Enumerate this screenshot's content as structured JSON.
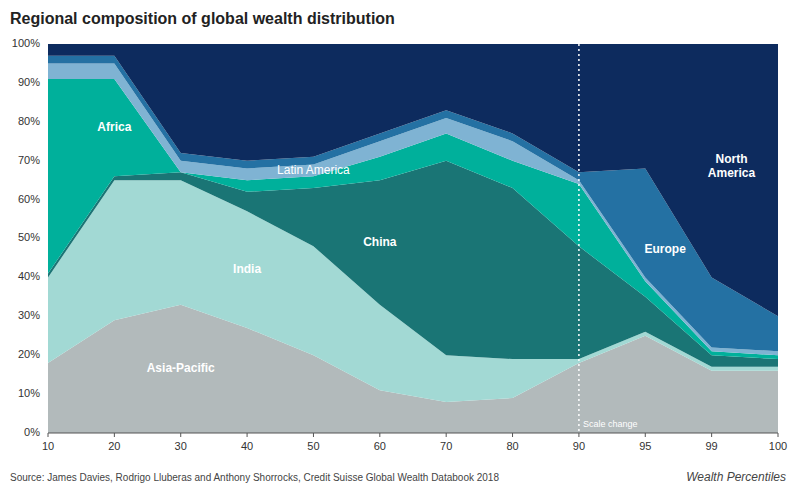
{
  "chart_data": {
    "type": "area",
    "stacked": true,
    "title": "Regional composition of global wealth distribution",
    "xlabel": "Wealth Percentiles",
    "source": "Source: James Davies, Rodrigo Lluberas and Anthony Shorrocks, Credit Suisse Global Wealth Databook 2018",
    "categories": [
      10,
      20,
      30,
      40,
      50,
      60,
      70,
      80,
      90,
      95,
      99,
      100
    ],
    "series": [
      {
        "name": "Asia-Pacific",
        "color": "#b2babb",
        "values": [
          18,
          29,
          33,
          27,
          20,
          11,
          8,
          9,
          18,
          25,
          16,
          16
        ]
      },
      {
        "name": "India",
        "color": "#a2d9d4",
        "values": [
          22,
          36,
          32,
          30,
          28,
          22,
          12,
          10,
          1,
          1,
          1,
          1
        ]
      },
      {
        "name": "China",
        "color": "#1a7575",
        "values": [
          1,
          1,
          2,
          5,
          15,
          32,
          50,
          44,
          29,
          9,
          3,
          2
        ]
      },
      {
        "name": "Africa",
        "color": "#00b09b",
        "values": [
          50,
          25,
          0,
          3,
          3,
          6,
          7,
          7,
          16,
          4,
          1,
          1
        ]
      },
      {
        "name": "Latin America",
        "color": "#7fb3d3",
        "values": [
          4,
          4,
          3,
          3,
          3,
          4,
          4,
          5,
          1,
          1,
          1,
          1
        ]
      },
      {
        "name": "Europe",
        "color": "#2471a3",
        "values": [
          2,
          2,
          2,
          2,
          2,
          2,
          2,
          2,
          2,
          28,
          18,
          9
        ]
      },
      {
        "name": "North America",
        "color": "#0d2b5e",
        "values": [
          3,
          3,
          28,
          30,
          29,
          23,
          17,
          23,
          33,
          32,
          60,
          70
        ]
      }
    ],
    "ylim": [
      0,
      100
    ],
    "yticks": [
      {
        "value": 0,
        "label": "0%"
      },
      {
        "value": 10,
        "label": "10%"
      },
      {
        "value": 20,
        "label": "20%"
      },
      {
        "value": 30,
        "label": "30%"
      },
      {
        "value": 40,
        "label": "40%"
      },
      {
        "value": 50,
        "label": "50%"
      },
      {
        "value": 60,
        "label": "60%"
      },
      {
        "value": 70,
        "label": "70%"
      },
      {
        "value": 80,
        "label": "80%"
      },
      {
        "value": 90,
        "label": "90%"
      },
      {
        "value": 100,
        "label": "100%"
      }
    ],
    "grid": false,
    "annotations": [
      {
        "text": "Scale change",
        "x": 90
      }
    ]
  }
}
